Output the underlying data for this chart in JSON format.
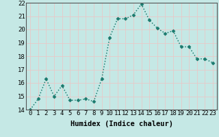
{
  "x": [
    0,
    1,
    2,
    3,
    4,
    5,
    6,
    7,
    8,
    9,
    10,
    11,
    12,
    13,
    14,
    15,
    16,
    17,
    18,
    19,
    20,
    21,
    22,
    23
  ],
  "y": [
    14.0,
    14.8,
    16.3,
    15.0,
    15.8,
    14.7,
    14.7,
    14.8,
    14.6,
    16.3,
    19.4,
    20.8,
    20.8,
    21.1,
    21.9,
    20.7,
    20.1,
    19.7,
    19.9,
    18.7,
    18.7,
    17.8,
    17.8,
    17.5
  ],
  "line_color": "#1a7a6e",
  "marker": "D",
  "marker_size": 2.5,
  "bg_color": "#c5e8e5",
  "grid_color": "#e8c8c8",
  "xlabel": "Humidex (Indice chaleur)",
  "ylim": [
    14,
    22
  ],
  "xlim": [
    -0.5,
    23.5
  ],
  "yticks": [
    14,
    15,
    16,
    17,
    18,
    19,
    20,
    21,
    22
  ],
  "xticks": [
    0,
    1,
    2,
    3,
    4,
    5,
    6,
    7,
    8,
    9,
    10,
    11,
    12,
    13,
    14,
    15,
    16,
    17,
    18,
    19,
    20,
    21,
    22,
    23
  ],
  "xlabel_fontsize": 7.5,
  "tick_fontsize": 6.5,
  "line_width": 1.1,
  "spine_color": "#555555"
}
